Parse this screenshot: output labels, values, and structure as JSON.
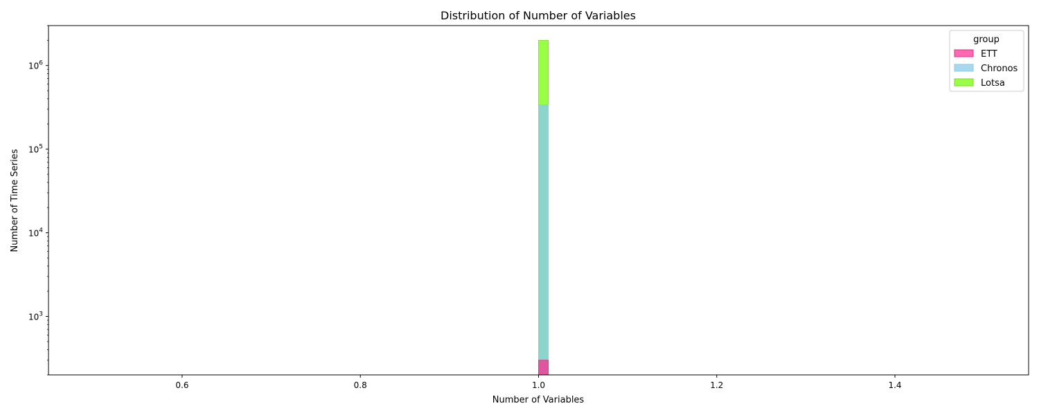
{
  "chart_data": {
    "type": "bar",
    "title": "Distribution of Number of Variables",
    "xlabel": "Number of Variables",
    "ylabel": "Number of Time Series",
    "x_scale": "linear",
    "y_scale": "log",
    "xlim": [
      0.45,
      1.55
    ],
    "ylim": [
      200,
      3000000
    ],
    "x_ticks": [
      0.6,
      0.8,
      1.0,
      1.2,
      1.4
    ],
    "x_tick_labels": [
      "0.6",
      "0.8",
      "1.0",
      "1.2",
      "1.4"
    ],
    "y_ticks": [
      1000,
      10000,
      100000,
      1000000
    ],
    "y_tick_labels": [
      "10",
      "10",
      "10",
      "10"
    ],
    "y_tick_exponents": [
      "3",
      "4",
      "5",
      "6"
    ],
    "bin": {
      "x_start": 1.0,
      "x_end": 1.011
    },
    "grid": false,
    "legend": {
      "title": "group",
      "placement": "top-right",
      "entries": [
        {
          "name": "ETT",
          "color": "#ff69b4",
          "edge": "#e0307f"
        },
        {
          "name": "Chronos",
          "color": "#a8d8f0",
          "edge": "#87ceeb"
        },
        {
          "name": "Lotsa",
          "color": "#99ff44",
          "edge": "#7ed62a"
        }
      ]
    },
    "series": [
      {
        "name": "ETT",
        "x": [
          1
        ],
        "values": [
          300
        ],
        "color": "#e0559f"
      },
      {
        "name": "Chronos",
        "x": [
          1
        ],
        "values": [
          340000
        ],
        "color": "#8dd5cc"
      },
      {
        "name": "Lotsa",
        "x": [
          1
        ],
        "values": [
          2000000
        ],
        "color": "#99ff44"
      }
    ]
  }
}
